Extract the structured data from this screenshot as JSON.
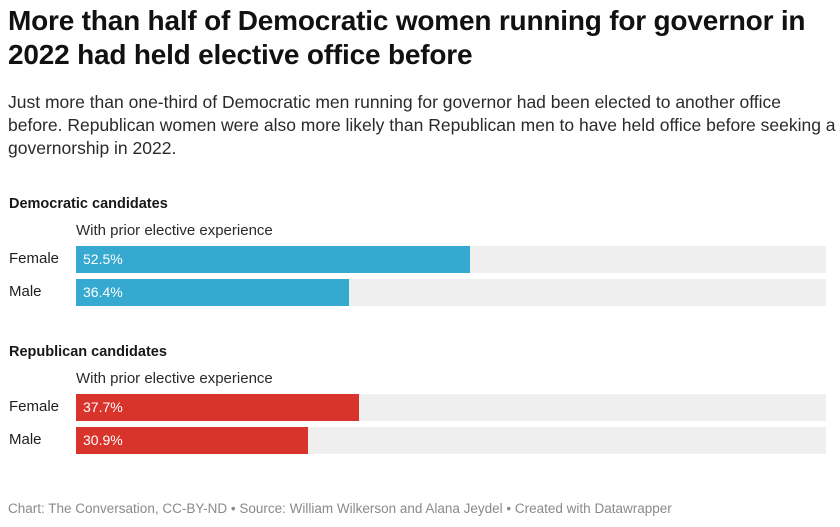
{
  "title": "More than half of Democratic women running for governor in 2022 had held elective office before",
  "subtitle": "Just more than one-third of Democratic men running for governor had been elected to another office before. Republican women were also more likely than Republican men to have held office before seeking a governorship in 2022.",
  "footer": {
    "text": "Chart: The Conversation, CC-BY-ND • Source: William Wilkerson and Alana Jeydel • Created with Datawrapper"
  },
  "chart_data": [
    {
      "type": "bar",
      "orientation": "horizontal",
      "title": "Democratic candidates",
      "column_header": "With prior elective experience",
      "categories": [
        "Female",
        "Male"
      ],
      "values": [
        52.5,
        36.4
      ],
      "value_labels": [
        "52.5%",
        "36.4%"
      ],
      "xlim": [
        0,
        100
      ],
      "unit": "%",
      "color": "#36a9d1"
    },
    {
      "type": "bar",
      "orientation": "horizontal",
      "title": "Republican candidates",
      "column_header": "With prior elective experience",
      "categories": [
        "Female",
        "Male"
      ],
      "values": [
        37.7,
        30.9
      ],
      "value_labels": [
        "37.7%",
        "30.9%"
      ],
      "xlim": [
        0,
        100
      ],
      "unit": "%",
      "color": "#d9342b"
    }
  ]
}
